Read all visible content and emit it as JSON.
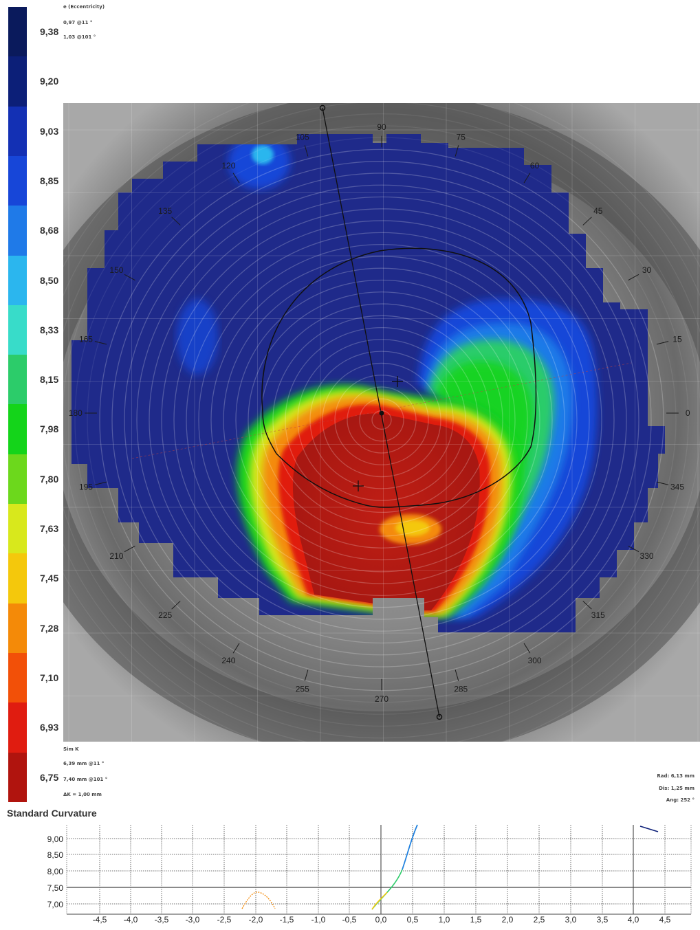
{
  "color_scale": {
    "labels": [
      "9,38",
      "9,20",
      "9,03",
      "8,85",
      "8,68",
      "8,50",
      "8,33",
      "8,15",
      "7,98",
      "7,80",
      "7,63",
      "7,45",
      "7,28",
      "7,10",
      "6,93",
      "6,75"
    ],
    "colors": [
      "#0a1a5c",
      "#0c1f78",
      "#1330b4",
      "#1746d8",
      "#1f7ae8",
      "#2bb6ee",
      "#38dcc9",
      "#2ccc6a",
      "#14d41a",
      "#6cd81c",
      "#d8e81c",
      "#f4c80c",
      "#f48a08",
      "#f25008",
      "#e01c10",
      "#b0140e"
    ]
  },
  "eccentricity": {
    "title": "e (Eccentricity)",
    "line1": "0,97 @11 °",
    "line2": "1,03 @101 °"
  },
  "sim_k": {
    "title": "Sim K",
    "line1": "6,39 mm @11 °",
    "line2": "7,40 mm @101 °",
    "line3": "ΔK = 1,00 mm"
  },
  "readout": {
    "rad": "Rad: 6,13 mm",
    "dis": "Dis: 1,25 mm",
    "ang": "Ang: 252 °"
  },
  "map_title": "Standard Curvature",
  "angles": [
    {
      "label": "0",
      "deg": 0
    },
    {
      "label": "15",
      "deg": 15
    },
    {
      "label": "30",
      "deg": 30
    },
    {
      "label": "45",
      "deg": 45
    },
    {
      "label": "60",
      "deg": 60
    },
    {
      "label": "75",
      "deg": 75
    },
    {
      "label": "90",
      "deg": 90
    },
    {
      "label": "105",
      "deg": 105
    },
    {
      "label": "120",
      "deg": 120
    },
    {
      "label": "135",
      "deg": 135
    },
    {
      "label": "150",
      "deg": 150
    },
    {
      "label": "165",
      "deg": 165
    },
    {
      "label": "180",
      "deg": 180
    },
    {
      "label": "195",
      "deg": 195
    },
    {
      "label": "210",
      "deg": 210
    },
    {
      "label": "225",
      "deg": 225
    },
    {
      "label": "240",
      "deg": 240
    },
    {
      "label": "255",
      "deg": 255
    },
    {
      "label": "270",
      "deg": 270
    },
    {
      "label": "285",
      "deg": 285
    },
    {
      "label": "300",
      "deg": 300
    },
    {
      "label": "315",
      "deg": 315
    },
    {
      "label": "330",
      "deg": 330
    },
    {
      "label": "345",
      "deg": 345
    }
  ],
  "profile": {
    "y_labels": [
      "9,00",
      "8,50",
      "8,00",
      "7,50",
      "7,00"
    ],
    "x_labels": [
      "-4,5",
      "-4,0",
      "-3,5",
      "-3,0",
      "-2,5",
      "-2,0",
      "-1,5",
      "-1,0",
      "-0,5",
      "0,0",
      "0,5",
      "1,0",
      "1,5",
      "2,0",
      "2,5",
      "3,0",
      "3,5",
      "4,0",
      "4,5"
    ]
  }
}
